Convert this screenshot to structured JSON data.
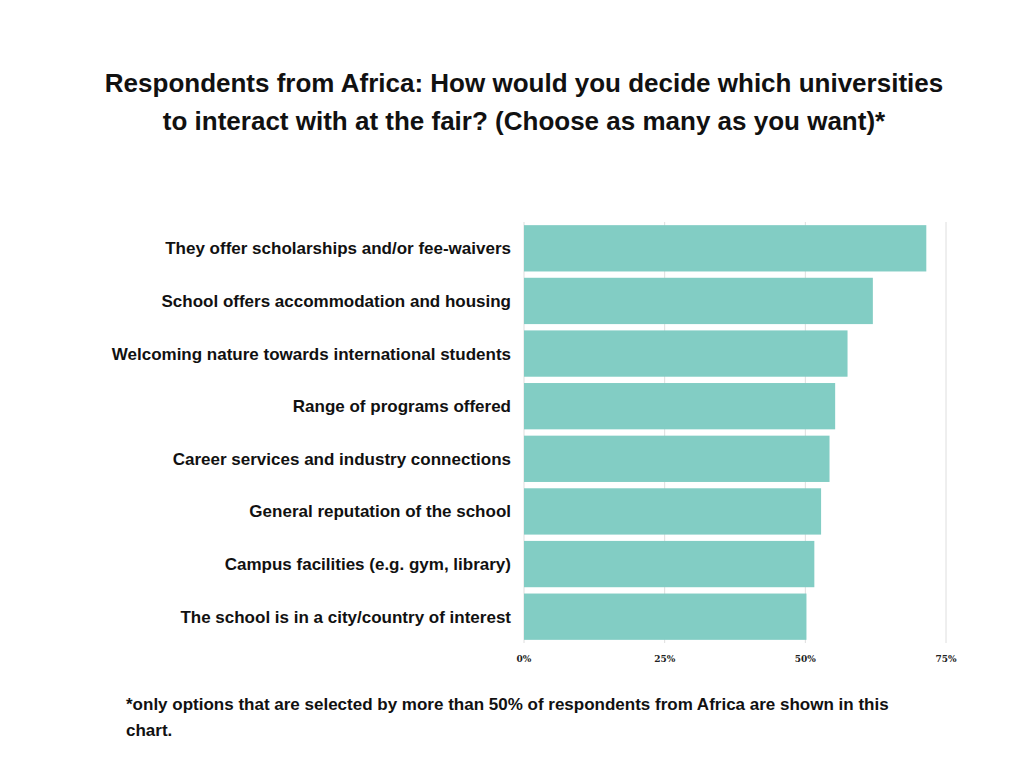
{
  "chart_data": {
    "type": "bar",
    "orientation": "horizontal",
    "title": "Respondents from Africa: How would you decide which universities to interact with at the fair? (Choose as many as you want)*",
    "categories": [
      "They offer scholarships and/or fee-waivers",
      "School offers accommodation and housing",
      "Welcoming nature towards international students",
      "Range of programs offered",
      "Career services and industry connections",
      "General reputation of the school",
      "Campus facilities (e.g. gym, library)",
      "The school is in a city/country of interest"
    ],
    "values": [
      71.5,
      62,
      57.5,
      55.3,
      54.3,
      52.8,
      51.6,
      50.2
    ],
    "color": "#82cdc4",
    "xlim": [
      0,
      75
    ],
    "xticks": [
      {
        "value": 0,
        "label": "0%"
      },
      {
        "value": 25,
        "label": "25%"
      },
      {
        "value": 50,
        "label": "50%"
      },
      {
        "value": 75,
        "label": "75%"
      }
    ],
    "grid": true,
    "annotations": [
      "*only options that are selected by more than 50% of respondents from Africa are shown in this chart."
    ]
  }
}
